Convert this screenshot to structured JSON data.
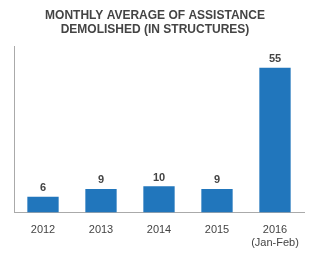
{
  "chart_data": {
    "type": "bar",
    "title": "MONTHLY AVERAGE OF ASSISTANCE\nDEMOLISHED (IN STRUCTURES)",
    "categories": [
      "2012",
      "2013",
      "2014",
      "2015",
      "2016\n(Jan-Feb)"
    ],
    "values": [
      6,
      9,
      10,
      9,
      55
    ],
    "color": "#2176bc",
    "ylim": [
      0,
      63
    ],
    "grid": false,
    "data_labels": true,
    "tick_labels": "x"
  }
}
